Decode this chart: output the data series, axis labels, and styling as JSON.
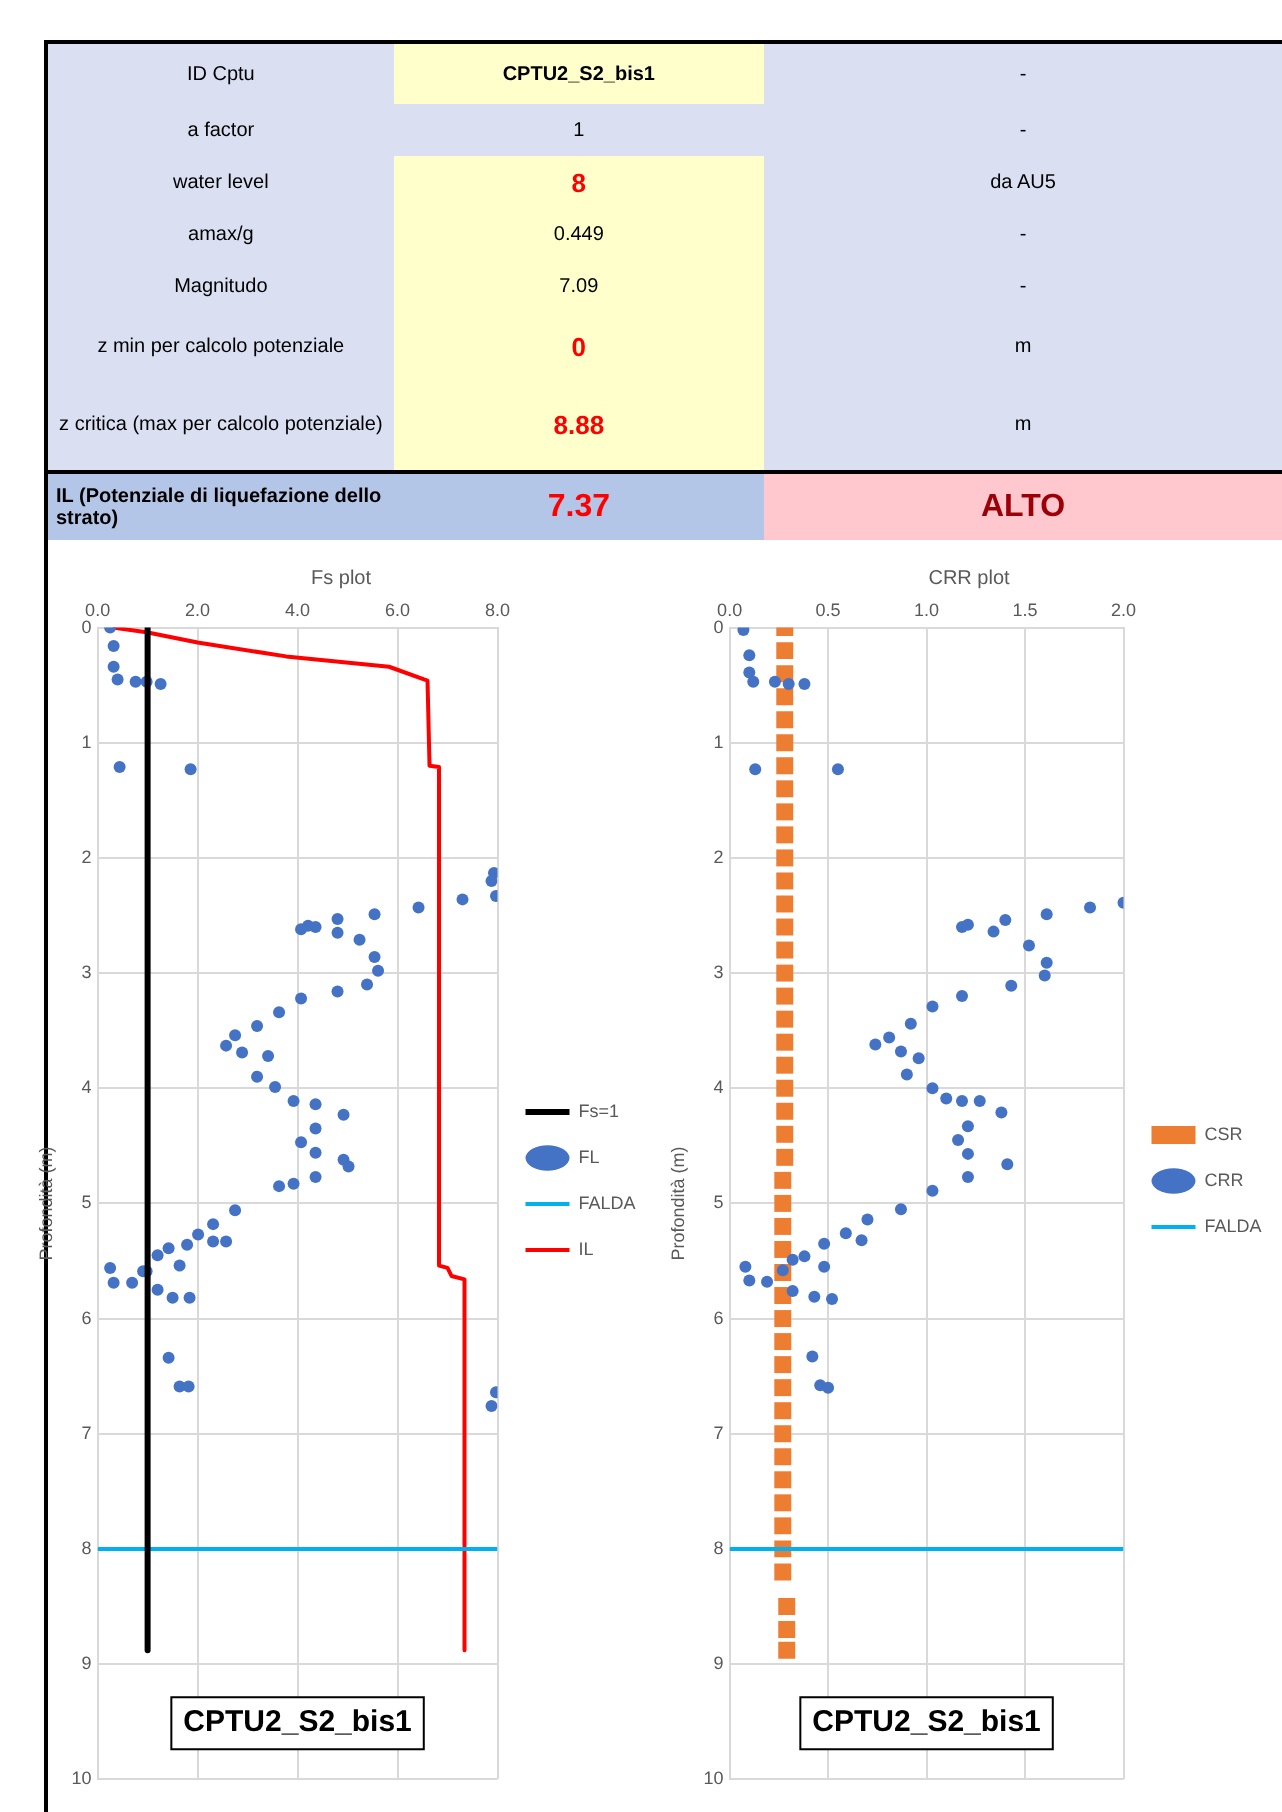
{
  "chart_data": [
    {
      "type": "other",
      "annotations": [
        "ID Cptu",
        "CPTU2_S2_bis1",
        "-",
        "a factor",
        "1",
        "-",
        "water level",
        "8",
        "da AU5",
        "amax/g",
        "0.449",
        "-",
        "Magnitudo",
        "7.09",
        "-",
        "z min per calcolo potenziale",
        "0",
        "m",
        "z critica (max per calcolo potenziale)",
        "8.88",
        "m",
        "IL (Potenziale di liquefazione dello strato)",
        "7.37",
        "ALTO"
      ]
    },
    {
      "type": "scatter",
      "title": "Fs plot",
      "ylabel": "Profondità (m)",
      "xlim": [
        0,
        8
      ],
      "xticks": [
        {
          "value": 0,
          "label": "0.0"
        },
        {
          "value": 2,
          "label": "2.0"
        },
        {
          "value": 4,
          "label": "4.0"
        },
        {
          "value": 6,
          "label": "6.0"
        },
        {
          "value": 8,
          "label": "8.0"
        }
      ],
      "ylim": [
        10,
        0
      ],
      "yticks": [
        0,
        1,
        2,
        3,
        4,
        5,
        6,
        7,
        8,
        9,
        10
      ],
      "grid": true,
      "legend": "right",
      "annotations": [
        "CPTU2_S2_bis1"
      ],
      "series": [
        {
          "name": "Fs=1",
          "type": "line",
          "marker": "none",
          "color": "#000000",
          "x": [
            1,
            1
          ],
          "values": [
            0,
            8.88
          ]
        },
        {
          "name": "FL",
          "type": "scatter",
          "marker": "circle",
          "color": "#4472c4",
          "x": [
            0.25,
            0.32,
            0.32,
            0.4,
            0.76,
            0.98,
            1.26,
            0.44,
            1.86,
            7.93,
            7.88,
            7.97,
            7.3,
            6.42,
            5.54,
            4.8,
            4.21,
            4.07,
            4.36,
            4.8,
            5.24,
            5.54,
            5.61,
            5.39,
            4.8,
            4.07,
            3.63,
            3.19,
            2.75,
            2.57,
            2.89,
            3.41,
            3.19,
            3.55,
            3.92,
            4.36,
            4.92,
            4.36,
            4.07,
            4.36,
            4.92,
            5.02,
            4.36,
            3.92,
            3.63,
            2.75,
            2.31,
            2.01,
            2.31,
            2.57,
            1.79,
            1.42,
            1.2,
            1.64,
            0.98,
            0.25,
            0.32,
            0.69,
            0.91,
            1.2,
            1.5,
            1.84,
            1.42,
            1.64,
            1.82,
            7.97,
            7.88
          ],
          "values": [
            0,
            0.16,
            0.34,
            0.45,
            0.47,
            0.47,
            0.49,
            1.21,
            1.23,
            2.13,
            2.2,
            2.33,
            2.36,
            2.43,
            2.49,
            2.53,
            2.59,
            2.62,
            2.6,
            2.65,
            2.71,
            2.86,
            2.98,
            3.1,
            3.16,
            3.22,
            3.34,
            3.46,
            3.54,
            3.63,
            3.69,
            3.72,
            3.9,
            3.99,
            4.11,
            4.14,
            4.23,
            4.35,
            4.47,
            4.56,
            4.62,
            4.68,
            4.77,
            4.83,
            4.85,
            5.06,
            5.18,
            5.27,
            5.33,
            5.33,
            5.36,
            5.39,
            5.45,
            5.54,
            5.59,
            5.56,
            5.69,
            5.69,
            5.59,
            5.75,
            5.82,
            5.82,
            6.34,
            6.59,
            6.59,
            6.64,
            6.76
          ]
        },
        {
          "name": "FALDA",
          "type": "line",
          "marker": "none",
          "color": "#00b0f0",
          "x": [
            0,
            8
          ],
          "values": [
            8,
            8
          ]
        },
        {
          "name": "IL",
          "type": "line",
          "marker": "none",
          "color": "#ff0000",
          "x": [
            0.3,
            0.98,
            2.0,
            3.77,
            5.83,
            6.53,
            6.6,
            6.64,
            6.83,
            6.83,
            7.0,
            7.08,
            7.34,
            7.34
          ],
          "values": [
            0,
            0.04,
            0.13,
            0.25,
            0.34,
            0.45,
            0.46,
            1.2,
            1.21,
            5.54,
            5.56,
            5.63,
            5.66,
            8.88
          ]
        }
      ]
    },
    {
      "type": "scatter",
      "title": "CRR plot",
      "ylabel": "Profondità (m)",
      "xlim": [
        0,
        2
      ],
      "xticks": [
        {
          "value": 0,
          "label": "0.0"
        },
        {
          "value": 0.5,
          "label": "0.5"
        },
        {
          "value": 1,
          "label": "1.0"
        },
        {
          "value": 1.5,
          "label": "1.5"
        },
        {
          "value": 2,
          "label": "2.0"
        }
      ],
      "ylim": [
        10,
        0
      ],
      "yticks": [
        0,
        1,
        2,
        3,
        4,
        5,
        6,
        7,
        8,
        9,
        10
      ],
      "grid": true,
      "legend": "right",
      "annotations": [
        "CPTU2_S2_bis1"
      ],
      "series": [
        {
          "name": "CSR",
          "type": "scatter",
          "marker": "square",
          "color": "#ed7d31",
          "x": [
            0.28,
            0.28,
            0.28,
            0.28,
            0.28,
            0.28,
            0.28,
            0.28,
            0.28,
            0.28,
            0.28,
            0.28,
            0.28,
            0.28,
            0.28,
            0.28,
            0.28,
            0.28,
            0.28,
            0.28,
            0.28,
            0.28,
            0.28,
            0.28,
            0.27,
            0.27,
            0.27,
            0.27,
            0.27,
            0.27,
            0.27,
            0.27,
            0.27,
            0.27,
            0.27,
            0.27,
            0.27,
            0.27,
            0.27,
            0.27,
            0.27,
            0.27,
            0.29,
            0.29,
            0.29
          ],
          "values": [
            0,
            0.2,
            0.4,
            0.6,
            0.8,
            1,
            1.2,
            1.4,
            1.6,
            1.8,
            2,
            2.2,
            2.4,
            2.6,
            2.8,
            3,
            3.2,
            3.4,
            3.6,
            3.8,
            4,
            4.2,
            4.4,
            4.6,
            4.8,
            5,
            5.2,
            5.4,
            5.6,
            5.8,
            6,
            6.2,
            6.4,
            6.6,
            6.8,
            7,
            7.2,
            7.4,
            7.6,
            7.8,
            8,
            8.2,
            8.5,
            8.7,
            8.88
          ]
        },
        {
          "name": "CRR",
          "type": "scatter",
          "marker": "circle",
          "color": "#4472c4",
          "x": [
            0.07,
            0.1,
            0.1,
            0.12,
            0.23,
            0.3,
            0.38,
            0.13,
            0.55,
            2.0,
            1.83,
            1.61,
            1.4,
            1.21,
            1.18,
            1.34,
            1.52,
            1.61,
            1.6,
            1.43,
            1.18,
            1.03,
            0.92,
            0.81,
            0.74,
            0.87,
            0.96,
            0.9,
            1.03,
            1.1,
            1.18,
            1.27,
            1.38,
            1.21,
            1.16,
            1.21,
            1.41,
            1.21,
            1.03,
            0.87,
            0.7,
            0.59,
            0.48,
            0.67,
            0.38,
            0.32,
            0.48,
            0.27,
            0.08,
            0.1,
            0.19,
            0.32,
            0.43,
            0.52,
            0.42,
            0.46,
            0.5
          ],
          "values": [
            0.02,
            0.24,
            0.39,
            0.47,
            0.47,
            0.49,
            0.49,
            1.23,
            1.23,
            2.39,
            2.43,
            2.49,
            2.54,
            2.58,
            2.6,
            2.64,
            2.76,
            2.91,
            3.02,
            3.11,
            3.2,
            3.29,
            3.44,
            3.56,
            3.62,
            3.68,
            3.74,
            3.88,
            4.0,
            4.09,
            4.11,
            4.11,
            4.21,
            4.33,
            4.45,
            4.57,
            4.66,
            4.77,
            4.89,
            5.05,
            5.14,
            5.26,
            5.35,
            5.32,
            5.46,
            5.49,
            5.55,
            5.58,
            5.55,
            5.67,
            5.68,
            5.76,
            5.81,
            5.83,
            6.33,
            6.58,
            6.6
          ]
        },
        {
          "name": "FALDA",
          "type": "line",
          "marker": "none",
          "color": "#00b0f0",
          "x": [
            0,
            2
          ],
          "values": [
            8,
            8
          ]
        }
      ]
    }
  ]
}
